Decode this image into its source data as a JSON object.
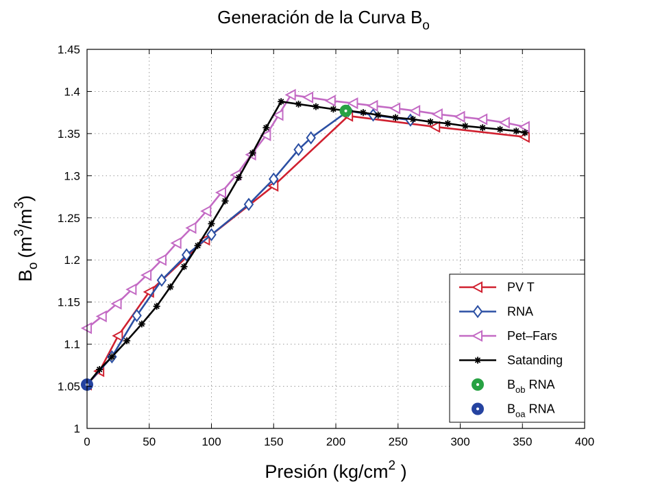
{
  "chart_data": {
    "type": "line",
    "title": {
      "main": "Generación de la Curva B",
      "sub": "o"
    },
    "xlabel": "Presión (kg/cm",
    "xlabel_sup": "2",
    "xlabel_end": " )",
    "ylabel": {
      "b": "B",
      "sub": "o",
      "open": "(m",
      "sup1": "3",
      "mid": "/m",
      "sup2": "3",
      "close": ")"
    },
    "xlim": [
      0,
      400
    ],
    "ylim": [
      1.0,
      1.45
    ],
    "x_ticks": [
      "0",
      "50",
      "100",
      "150",
      "200",
      "250",
      "300",
      "350",
      "400"
    ],
    "y_ticks": [
      "1",
      "1.05",
      "1.1",
      "1.15",
      "1.2",
      "1.25",
      "1.3",
      "1.35",
      "1.4",
      "1.45"
    ],
    "grid": true,
    "legend_position": "bottom-right",
    "series": [
      {
        "name": "PV T",
        "color": "#d0202f",
        "marker": "triangle-left",
        "x": [
          0,
          10,
          25,
          50,
          95,
          150,
          210,
          280,
          352
        ],
        "y": [
          1.052,
          1.068,
          1.11,
          1.162,
          1.224,
          1.288,
          1.371,
          1.358,
          1.346
        ]
      },
      {
        "name": "RNA",
        "color": "#2b4fa3",
        "marker": "diamond",
        "x": [
          0,
          20,
          40,
          60,
          80,
          100,
          130,
          150,
          170,
          180,
          210,
          230,
          260
        ],
        "y": [
          1.052,
          1.085,
          1.134,
          1.176,
          1.206,
          1.23,
          1.266,
          1.296,
          1.331,
          1.345,
          1.377,
          1.372,
          1.366
        ]
      },
      {
        "name": "Pet–Fars",
        "color": "#c36ac4",
        "marker": "triangle-left",
        "x": [
          0,
          12,
          24,
          36,
          48,
          60,
          72,
          84,
          96,
          108,
          120,
          132,
          144,
          154,
          164,
          178,
          196,
          214,
          230,
          248,
          264,
          282,
          300,
          318,
          336,
          352
        ],
        "y": [
          1.119,
          1.133,
          1.148,
          1.165,
          1.182,
          1.2,
          1.22,
          1.238,
          1.258,
          1.28,
          1.301,
          1.325,
          1.348,
          1.372,
          1.396,
          1.393,
          1.389,
          1.386,
          1.383,
          1.38,
          1.377,
          1.373,
          1.37,
          1.367,
          1.363,
          1.358
        ]
      },
      {
        "name": "Satanding",
        "color": "#000000",
        "marker": "asterisk",
        "x": [
          0,
          10,
          20,
          32,
          44,
          56,
          67,
          78,
          89,
          100,
          111,
          122,
          133,
          144,
          156,
          170,
          184,
          198,
          210,
          222,
          234,
          248,
          262,
          276,
          290,
          304,
          318,
          332,
          345,
          352
        ],
        "y": [
          1.052,
          1.07,
          1.085,
          1.104,
          1.124,
          1.145,
          1.168,
          1.192,
          1.217,
          1.243,
          1.27,
          1.298,
          1.327,
          1.357,
          1.388,
          1.385,
          1.382,
          1.379,
          1.377,
          1.375,
          1.372,
          1.369,
          1.367,
          1.364,
          1.362,
          1.359,
          1.357,
          1.355,
          1.353,
          1.351
        ]
      }
    ],
    "points": [
      {
        "name_main": "B",
        "name_sub": "ob",
        "name_after": " RNA",
        "color": "#27a243",
        "x": 208,
        "y": 1.377
      },
      {
        "name_main": "B",
        "name_sub": "oa",
        "name_after": " RNA",
        "color": "#2543a0",
        "x": 0,
        "y": 1.052
      }
    ]
  }
}
